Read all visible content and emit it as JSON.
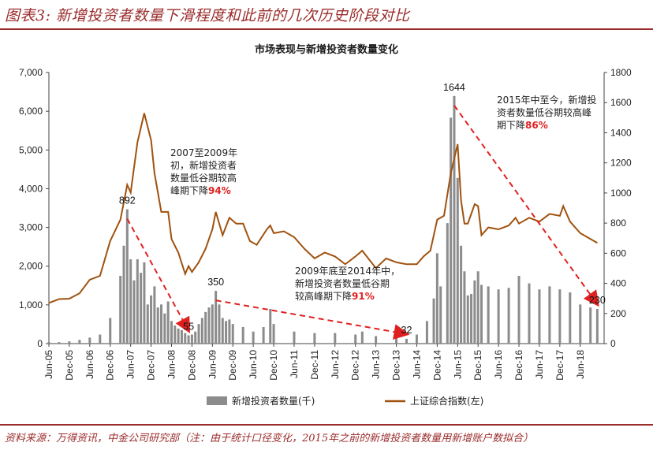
{
  "figure": {
    "title": "图表3: 新增投资者数量下滑程度和此前的几次历史阶段对比",
    "source": "资料来源：万得资讯，中金公司研究部（注：由于统计口径变化，2015年之前的新增投资者数量用新增账户数拟合）"
  },
  "chart_data": {
    "type": "bar",
    "title": "市场表现与新增投资者数量变化",
    "x_ticks": [
      "Jun-05",
      "Dec-05",
      "Jun-06",
      "Dec-06",
      "Jun-07",
      "Dec-07",
      "Jun-08",
      "Dec-08",
      "Jun-09",
      "Dec-09",
      "Jun-10",
      "Dec-10",
      "Jun-11",
      "Dec-11",
      "Jun-12",
      "Dec-12",
      "Jun-13",
      "Dec-13",
      "Jun-14",
      "Dec-14",
      "Jun-15",
      "Dec-15",
      "Jun-16",
      "Dec-16",
      "Jun-17",
      "Dec-17",
      "Jun-18"
    ],
    "y_left": {
      "lim": [
        0,
        7000
      ],
      "ticks": [
        "0",
        "1,000",
        "2,000",
        "3,000",
        "4,000",
        "5,000",
        "6,000",
        "7,000"
      ]
    },
    "y_right": {
      "lim": [
        0,
        1800
      ],
      "ticks": [
        "0",
        "200",
        "400",
        "600",
        "800",
        "1000",
        "1200",
        "1400",
        "1600",
        "1800"
      ]
    },
    "series": [
      {
        "name": "新增投资者数量(千)",
        "type": "bar",
        "axis": "right",
        "color": "#8c8c8c",
        "points": [
          [
            "Jun-05",
            10
          ],
          [
            "Sep-05",
            10
          ],
          [
            "Dec-05",
            15
          ],
          [
            "Mar-06",
            25
          ],
          [
            "Jun-06",
            40
          ],
          [
            "Sep-06",
            60
          ],
          [
            "Dec-06",
            170
          ],
          [
            "Mar-07",
            450
          ],
          [
            "Apr-07",
            650
          ],
          [
            "May-07",
            892
          ],
          [
            "Jun-07",
            560
          ],
          [
            "Jul-07",
            420
          ],
          [
            "Aug-07",
            560
          ],
          [
            "Sep-07",
            470
          ],
          [
            "Oct-07",
            540
          ],
          [
            "Nov-07",
            260
          ],
          [
            "Dec-07",
            320
          ],
          [
            "Jan-08",
            380
          ],
          [
            "Feb-08",
            240
          ],
          [
            "Mar-08",
            260
          ],
          [
            "Apr-08",
            200
          ],
          [
            "May-08",
            280
          ],
          [
            "Jun-08",
            150
          ],
          [
            "Jul-08",
            120
          ],
          [
            "Aug-08",
            100
          ],
          [
            "Sep-08",
            90
          ],
          [
            "Oct-08",
            70
          ],
          [
            "Nov-08",
            55
          ],
          [
            "Dec-08",
            60
          ],
          [
            "Jan-09",
            80
          ],
          [
            "Feb-09",
            130
          ],
          [
            "Mar-09",
            170
          ],
          [
            "Apr-09",
            210
          ],
          [
            "May-09",
            240
          ],
          [
            "Jun-09",
            260
          ],
          [
            "Jul-09",
            350
          ],
          [
            "Aug-09",
            260
          ],
          [
            "Sep-09",
            170
          ],
          [
            "Oct-09",
            150
          ],
          [
            "Nov-09",
            160
          ],
          [
            "Dec-09",
            130
          ],
          [
            "Mar-10",
            110
          ],
          [
            "Jun-10",
            80
          ],
          [
            "Sep-10",
            110
          ],
          [
            "Nov-10",
            230
          ],
          [
            "Dec-10",
            130
          ],
          [
            "Jun-11",
            80
          ],
          [
            "Dec-11",
            70
          ],
          [
            "Jun-12",
            70
          ],
          [
            "Dec-12",
            60
          ],
          [
            "Feb-13",
            80
          ],
          [
            "Jun-13",
            50
          ],
          [
            "Dec-13",
            40
          ],
          [
            "Mar-14",
            32
          ],
          [
            "Jun-14",
            60
          ],
          [
            "Sep-14",
            150
          ],
          [
            "Nov-14",
            300
          ],
          [
            "Dec-14",
            600
          ],
          [
            "Jan-15",
            380
          ],
          [
            "Mar-15",
            800
          ],
          [
            "Apr-15",
            1500
          ],
          [
            "May-15",
            1644
          ],
          [
            "Jun-15",
            1100
          ],
          [
            "Jul-15",
            650
          ],
          [
            "Aug-15",
            480
          ],
          [
            "Sep-15",
            320
          ],
          [
            "Oct-15",
            330
          ],
          [
            "Nov-15",
            420
          ],
          [
            "Dec-15",
            480
          ],
          [
            "Jan-16",
            390
          ],
          [
            "Mar-16",
            380
          ],
          [
            "Jun-16",
            360
          ],
          [
            "Sep-16",
            370
          ],
          [
            "Dec-16",
            450
          ],
          [
            "Mar-17",
            400
          ],
          [
            "Jun-17",
            360
          ],
          [
            "Sep-17",
            380
          ],
          [
            "Dec-17",
            360
          ],
          [
            "Mar-18",
            340
          ],
          [
            "Jun-18",
            260
          ],
          [
            "Sep-18",
            240
          ],
          [
            "Nov-18",
            230
          ]
        ]
      },
      {
        "name": "上证综合指数(左)",
        "type": "line",
        "axis": "left",
        "color": "#a0520f",
        "points": [
          [
            "Jun-05",
            1050
          ],
          [
            "Sep-05",
            1150
          ],
          [
            "Dec-05",
            1160
          ],
          [
            "Mar-06",
            1300
          ],
          [
            "Jun-06",
            1650
          ],
          [
            "Sep-06",
            1750
          ],
          [
            "Dec-06",
            2650
          ],
          [
            "Mar-07",
            3200
          ],
          [
            "May-07",
            4100
          ],
          [
            "Jun-07",
            3900
          ],
          [
            "Aug-07",
            5200
          ],
          [
            "Oct-07",
            5950
          ],
          [
            "Dec-07",
            5250
          ],
          [
            "Jan-08",
            4400
          ],
          [
            "Mar-08",
            3400
          ],
          [
            "May-08",
            3400
          ],
          [
            "Jun-08",
            2700
          ],
          [
            "Aug-08",
            2350
          ],
          [
            "Oct-08",
            1800
          ],
          [
            "Nov-08",
            2000
          ],
          [
            "Dec-08",
            1850
          ],
          [
            "Feb-09",
            2100
          ],
          [
            "Apr-09",
            2450
          ],
          [
            "Jun-09",
            2950
          ],
          [
            "Jul-09",
            3400
          ],
          [
            "Sep-09",
            2800
          ],
          [
            "Nov-09",
            3250
          ],
          [
            "Jan-10",
            3100
          ],
          [
            "Mar-10",
            3100
          ],
          [
            "May-10",
            2650
          ],
          [
            "Jul-10",
            2550
          ],
          [
            "Oct-10",
            2950
          ],
          [
            "Nov-10",
            3050
          ],
          [
            "Dec-10",
            2850
          ],
          [
            "Mar-11",
            2900
          ],
          [
            "Jun-11",
            2750
          ],
          [
            "Sep-11",
            2450
          ],
          [
            "Dec-11",
            2200
          ],
          [
            "Mar-12",
            2350
          ],
          [
            "Jun-12",
            2250
          ],
          [
            "Sep-12",
            2050
          ],
          [
            "Dec-12",
            2250
          ],
          [
            "Feb-13",
            2400
          ],
          [
            "Jun-13",
            1950
          ],
          [
            "Sep-13",
            2200
          ],
          [
            "Dec-13",
            2100
          ],
          [
            "Mar-14",
            2050
          ],
          [
            "Jun-14",
            2050
          ],
          [
            "Aug-14",
            2250
          ],
          [
            "Oct-14",
            2400
          ],
          [
            "Dec-14",
            3200
          ],
          [
            "Feb-15",
            3300
          ],
          [
            "Apr-15",
            4400
          ],
          [
            "Jun-15",
            5150
          ],
          [
            "Jul-15",
            3700
          ],
          [
            "Aug-15",
            3100
          ],
          [
            "Sep-15",
            3100
          ],
          [
            "Nov-15",
            3600
          ],
          [
            "Dec-15",
            3550
          ],
          [
            "Jan-16",
            2800
          ],
          [
            "Mar-16",
            3000
          ],
          [
            "Jun-16",
            2950
          ],
          [
            "Sep-16",
            3050
          ],
          [
            "Nov-16",
            3250
          ],
          [
            "Dec-16",
            3100
          ],
          [
            "Mar-17",
            3250
          ],
          [
            "Jun-17",
            3150
          ],
          [
            "Sep-17",
            3350
          ],
          [
            "Dec-17",
            3300
          ],
          [
            "Jan-18",
            3550
          ],
          [
            "Mar-18",
            3150
          ],
          [
            "Jun-18",
            2850
          ],
          [
            "Sep-18",
            2700
          ],
          [
            "Nov-18",
            2600
          ]
        ]
      }
    ],
    "peak_labels": [
      {
        "x": "May-07",
        "text": "892"
      },
      {
        "x": "Nov-08",
        "text": "55"
      },
      {
        "x": "Jul-09",
        "text": "350"
      },
      {
        "x": "Mar-14",
        "text": "32"
      },
      {
        "x": "May-15",
        "text": "1644"
      },
      {
        "x": "Nov-18",
        "text": "230"
      }
    ],
    "arrows": [
      {
        "from": "May-07",
        "to": "Nov-08"
      },
      {
        "from": "Jul-09",
        "to": "Mar-14"
      },
      {
        "from": "May-15",
        "to": "Nov-18"
      }
    ],
    "annotations": [
      {
        "lines": [
          "2007至2009年",
          "初，新增投资者",
          "数量低谷期较高",
          "峰期下降"
        ],
        "highlight": "94%"
      },
      {
        "lines": [
          "2009年底至2014年中，",
          "新增投资者数量低谷期",
          "较高峰期下降"
        ],
        "highlight": "91%"
      },
      {
        "lines": [
          "2015年中至今，新增投",
          "资者数量低谷期较高峰",
          "期下降"
        ],
        "highlight": "86%"
      }
    ],
    "legend": {
      "position": "bottom",
      "items": [
        {
          "label": "新增投资者数量(千)",
          "color": "#8c8c8c",
          "kind": "bar"
        },
        {
          "label": "上证综合指数(左)",
          "color": "#a0520f",
          "kind": "line"
        }
      ]
    },
    "grid": false
  }
}
